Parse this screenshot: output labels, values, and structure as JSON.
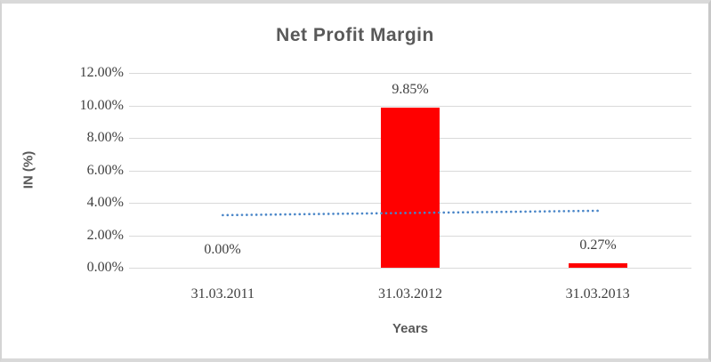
{
  "chart_data": {
    "type": "bar",
    "title": "Net Profit Margin",
    "xlabel": "Years",
    "ylabel": "IN (%)",
    "categories": [
      "31.03.2011",
      "31.03.2012",
      "31.03.2013"
    ],
    "values": [
      0.0,
      9.85,
      0.27
    ],
    "data_labels": [
      "0.00%",
      "9.85%",
      "0.27%"
    ],
    "y_ticks": [
      "12.00%",
      "10.00%",
      "8.00%",
      "6.00%",
      "4.00%",
      "2.00%",
      "0.00%"
    ],
    "ylim": [
      0,
      12
    ],
    "y_tick_step": 2,
    "grid": true,
    "legend_position": "none",
    "bar_color": "#ff0000",
    "grid_color": "#d9d9d9",
    "title_color": "#595959",
    "axis_title_color": "#595959",
    "tick_label_color": "#3f3f3f",
    "trendline": {
      "style": "dotted",
      "color": "#4a86c8",
      "start_value": 3.24,
      "end_value": 3.51
    }
  }
}
